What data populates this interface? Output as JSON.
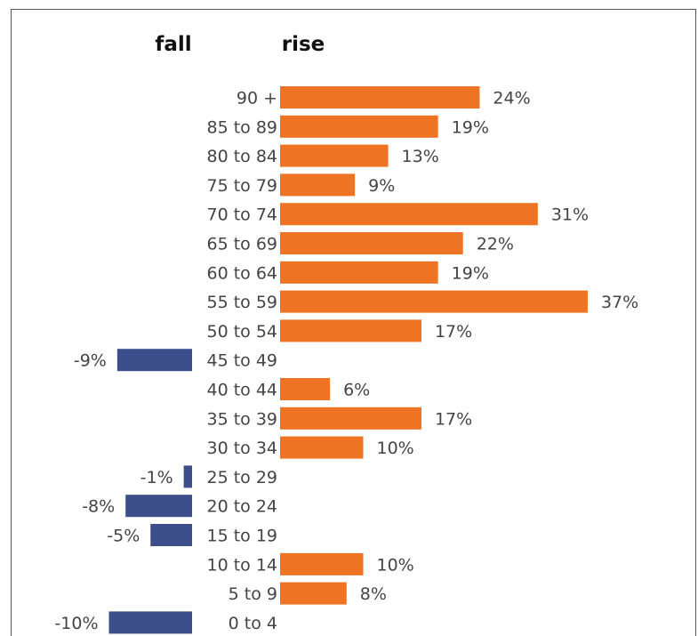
{
  "chart_data": {
    "type": "bar",
    "orientation": "horizontal-diverging",
    "headers": {
      "left": "fall",
      "right": "rise"
    },
    "categories": [
      "90 +",
      "85 to 89",
      "80 to 84",
      "75 to 79",
      "70 to 74",
      "65 to 69",
      "60 to 64",
      "55 to 59",
      "50 to 54",
      "45 to 49",
      "40 to 44",
      "35 to 39",
      "30 to 34",
      "25 to 29",
      "20 to 24",
      "15 to 19",
      "10 to 14",
      "5 to 9",
      "0 to 4"
    ],
    "values": [
      24,
      19,
      13,
      9,
      31,
      22,
      19,
      37,
      17,
      -9,
      6,
      17,
      10,
      -1,
      -8,
      -5,
      10,
      8,
      -10
    ],
    "value_labels": [
      "24%",
      "19%",
      "13%",
      "9%",
      "31%",
      "22%",
      "19%",
      "37%",
      "17%",
      "-9%",
      "6%",
      "17%",
      "10%",
      "-1%",
      "-8%",
      "-5%",
      "10%",
      "8%",
      "-10%"
    ],
    "unit": "%",
    "colors": {
      "positive": "#ee7322",
      "negative": "#3c4f8c"
    },
    "legend": "none",
    "grid": false
  }
}
